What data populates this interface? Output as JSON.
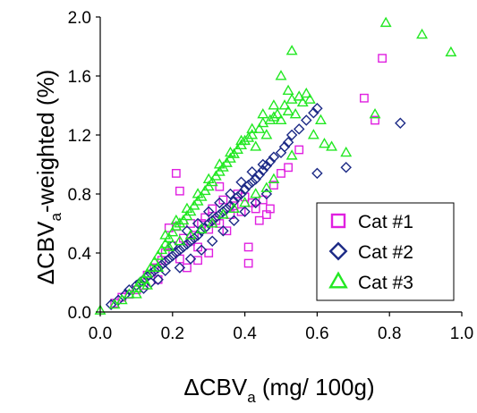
{
  "chart_data": {
    "type": "scatter",
    "title": "",
    "xlabel": {
      "main": "ΔCBV",
      "sub": "a",
      "rest": " (mg/ 100g)"
    },
    "ylabel": {
      "main": "ΔCBV",
      "sub": "a",
      "rest": "-weighted (%)"
    },
    "xlim": [
      0.0,
      1.0
    ],
    "ylim": [
      0.0,
      2.0
    ],
    "x_ticks": [
      "0.0",
      "0.2",
      "0.4",
      "0.6",
      "0.8",
      "1.0"
    ],
    "y_ticks": [
      "0.0",
      "0.4",
      "0.8",
      "1.2",
      "1.6",
      "2.0"
    ],
    "grid": false,
    "legend": "bottom-right",
    "series": [
      {
        "name": "Cat #1",
        "marker": "square",
        "color": "#e020e0",
        "points": [
          [
            0.04,
            0.06
          ],
          [
            0.06,
            0.1
          ],
          [
            0.08,
            0.12
          ],
          [
            0.1,
            0.15
          ],
          [
            0.12,
            0.18
          ],
          [
            0.13,
            0.25
          ],
          [
            0.15,
            0.3
          ],
          [
            0.16,
            0.22
          ],
          [
            0.17,
            0.35
          ],
          [
            0.18,
            0.4
          ],
          [
            0.19,
            0.57
          ],
          [
            0.2,
            0.45
          ],
          [
            0.21,
            0.58
          ],
          [
            0.21,
            0.94
          ],
          [
            0.22,
            0.82
          ],
          [
            0.22,
            0.36
          ],
          [
            0.23,
            0.5
          ],
          [
            0.24,
            0.3
          ],
          [
            0.25,
            0.48
          ],
          [
            0.26,
            0.52
          ],
          [
            0.27,
            0.44
          ],
          [
            0.28,
            0.6
          ],
          [
            0.29,
            0.64
          ],
          [
            0.3,
            0.56
          ],
          [
            0.31,
            0.7
          ],
          [
            0.32,
            0.62
          ],
          [
            0.33,
            0.6
          ],
          [
            0.34,
            0.76
          ],
          [
            0.35,
            0.55
          ],
          [
            0.36,
            0.66
          ],
          [
            0.37,
            0.72
          ],
          [
            0.38,
            0.8
          ],
          [
            0.39,
            0.68
          ],
          [
            0.4,
            0.78
          ],
          [
            0.41,
            0.44
          ],
          [
            0.42,
            0.74
          ],
          [
            0.43,
            0.7
          ],
          [
            0.44,
            0.62
          ],
          [
            0.45,
            0.76
          ],
          [
            0.46,
            0.66
          ],
          [
            0.47,
            0.7
          ],
          [
            0.48,
            0.86
          ],
          [
            0.5,
            0.94
          ],
          [
            0.52,
            0.98
          ],
          [
            0.55,
            1.1
          ],
          [
            0.73,
            1.45
          ],
          [
            0.76,
            1.3
          ],
          [
            0.78,
            1.72
          ],
          [
            0.41,
            0.33
          ],
          [
            0.33,
            0.85
          ],
          [
            0.3,
            0.4
          ],
          [
            0.27,
            0.35
          ],
          [
            0.25,
            0.6
          ]
        ]
      },
      {
        "name": "Cat #2",
        "marker": "diamond",
        "color": "#1c2a86",
        "points": [
          [
            0.03,
            0.05
          ],
          [
            0.05,
            0.08
          ],
          [
            0.07,
            0.12
          ],
          [
            0.08,
            0.15
          ],
          [
            0.1,
            0.18
          ],
          [
            0.11,
            0.2
          ],
          [
            0.12,
            0.22
          ],
          [
            0.13,
            0.24
          ],
          [
            0.14,
            0.26
          ],
          [
            0.15,
            0.28
          ],
          [
            0.16,
            0.3
          ],
          [
            0.17,
            0.32
          ],
          [
            0.18,
            0.34
          ],
          [
            0.19,
            0.36
          ],
          [
            0.2,
            0.38
          ],
          [
            0.21,
            0.4
          ],
          [
            0.22,
            0.42
          ],
          [
            0.23,
            0.44
          ],
          [
            0.24,
            0.46
          ],
          [
            0.25,
            0.48
          ],
          [
            0.26,
            0.5
          ],
          [
            0.27,
            0.52
          ],
          [
            0.28,
            0.55
          ],
          [
            0.29,
            0.57
          ],
          [
            0.3,
            0.6
          ],
          [
            0.31,
            0.62
          ],
          [
            0.32,
            0.64
          ],
          [
            0.33,
            0.66
          ],
          [
            0.34,
            0.68
          ],
          [
            0.35,
            0.7
          ],
          [
            0.36,
            0.72
          ],
          [
            0.37,
            0.75
          ],
          [
            0.38,
            0.78
          ],
          [
            0.39,
            0.8
          ],
          [
            0.4,
            0.83
          ],
          [
            0.41,
            0.86
          ],
          [
            0.42,
            0.88
          ],
          [
            0.43,
            0.9
          ],
          [
            0.44,
            0.93
          ],
          [
            0.45,
            0.96
          ],
          [
            0.46,
            0.99
          ],
          [
            0.47,
            1.02
          ],
          [
            0.48,
            1.05
          ],
          [
            0.5,
            1.08
          ],
          [
            0.51,
            1.12
          ],
          [
            0.52,
            1.15
          ],
          [
            0.53,
            1.2
          ],
          [
            0.55,
            1.24
          ],
          [
            0.57,
            1.3
          ],
          [
            0.59,
            1.35
          ],
          [
            0.6,
            1.38
          ],
          [
            0.6,
            0.94
          ],
          [
            0.68,
            0.98
          ],
          [
            0.83,
            1.28
          ],
          [
            0.22,
            0.3
          ],
          [
            0.25,
            0.36
          ],
          [
            0.28,
            0.42
          ],
          [
            0.31,
            0.48
          ],
          [
            0.34,
            0.55
          ],
          [
            0.37,
            0.62
          ],
          [
            0.4,
            0.68
          ],
          [
            0.43,
            0.74
          ],
          [
            0.46,
            0.8
          ],
          [
            0.2,
            0.45
          ],
          [
            0.24,
            0.55
          ],
          [
            0.27,
            0.6
          ],
          [
            0.3,
            0.68
          ],
          [
            0.33,
            0.74
          ],
          [
            0.36,
            0.8
          ],
          [
            0.39,
            0.88
          ],
          [
            0.42,
            0.95
          ],
          [
            0.45,
            1.0
          ],
          [
            0.16,
            0.22
          ],
          [
            0.18,
            0.28
          ],
          [
            0.14,
            0.2
          ],
          [
            0.12,
            0.16
          ]
        ]
      },
      {
        "name": "Cat #3",
        "marker": "triangle",
        "color": "#22e822",
        "points": [
          [
            0.0,
            0.01
          ],
          [
            0.04,
            0.05
          ],
          [
            0.06,
            0.08
          ],
          [
            0.08,
            0.12
          ],
          [
            0.1,
            0.16
          ],
          [
            0.11,
            0.2
          ],
          [
            0.12,
            0.22
          ],
          [
            0.13,
            0.26
          ],
          [
            0.14,
            0.3
          ],
          [
            0.15,
            0.34
          ],
          [
            0.16,
            0.38
          ],
          [
            0.17,
            0.42
          ],
          [
            0.18,
            0.46
          ],
          [
            0.19,
            0.5
          ],
          [
            0.2,
            0.54
          ],
          [
            0.21,
            0.58
          ],
          [
            0.22,
            0.6
          ],
          [
            0.23,
            0.62
          ],
          [
            0.24,
            0.65
          ],
          [
            0.25,
            0.68
          ],
          [
            0.26,
            0.72
          ],
          [
            0.27,
            0.75
          ],
          [
            0.28,
            0.78
          ],
          [
            0.29,
            0.82
          ],
          [
            0.3,
            0.85
          ],
          [
            0.31,
            0.88
          ],
          [
            0.32,
            0.92
          ],
          [
            0.33,
            0.95
          ],
          [
            0.34,
            0.98
          ],
          [
            0.35,
            1.01
          ],
          [
            0.36,
            1.04
          ],
          [
            0.37,
            1.07
          ],
          [
            0.38,
            1.1
          ],
          [
            0.39,
            1.13
          ],
          [
            0.4,
            1.16
          ],
          [
            0.41,
            1.18
          ],
          [
            0.42,
            1.2
          ],
          [
            0.43,
            1.12
          ],
          [
            0.44,
            1.24
          ],
          [
            0.45,
            1.28
          ],
          [
            0.46,
            1.2
          ],
          [
            0.47,
            1.3
          ],
          [
            0.48,
            1.32
          ],
          [
            0.49,
            1.34
          ],
          [
            0.5,
            1.3
          ],
          [
            0.51,
            1.4
          ],
          [
            0.52,
            1.36
          ],
          [
            0.53,
            1.44
          ],
          [
            0.54,
            1.34
          ],
          [
            0.55,
            1.46
          ],
          [
            0.56,
            1.42
          ],
          [
            0.57,
            1.48
          ],
          [
            0.58,
            1.44
          ],
          [
            0.59,
            1.2
          ],
          [
            0.61,
            1.3
          ],
          [
            0.62,
            1.14
          ],
          [
            0.64,
            1.12
          ],
          [
            0.68,
            1.08
          ],
          [
            0.76,
            1.34
          ],
          [
            0.79,
            1.96
          ],
          [
            0.89,
            1.88
          ],
          [
            0.97,
            1.76
          ],
          [
            0.53,
            1.77
          ],
          [
            0.53,
            1.06
          ],
          [
            0.48,
            0.9
          ],
          [
            0.46,
            0.84
          ],
          [
            0.43,
            0.8
          ],
          [
            0.4,
            0.74
          ],
          [
            0.37,
            0.7
          ],
          [
            0.34,
            0.66
          ],
          [
            0.31,
            0.6
          ],
          [
            0.28,
            0.56
          ],
          [
            0.25,
            0.52
          ],
          [
            0.22,
            0.48
          ],
          [
            0.19,
            0.44
          ],
          [
            0.16,
            0.3
          ],
          [
            0.13,
            0.18
          ],
          [
            0.18,
            0.52
          ],
          [
            0.21,
            0.62
          ],
          [
            0.24,
            0.7
          ],
          [
            0.27,
            0.8
          ],
          [
            0.3,
            0.9
          ],
          [
            0.33,
            1.0
          ],
          [
            0.36,
            1.08
          ],
          [
            0.39,
            1.16
          ],
          [
            0.42,
            1.24
          ],
          [
            0.45,
            1.34
          ],
          [
            0.48,
            1.4
          ],
          [
            0.5,
            1.6
          ],
          [
            0.52,
            1.5
          ],
          [
            0.1,
            0.12
          ]
        ]
      }
    ]
  },
  "colors": {
    "axis": "#000000",
    "background": "#ffffff",
    "legend_border": "#000000"
  }
}
